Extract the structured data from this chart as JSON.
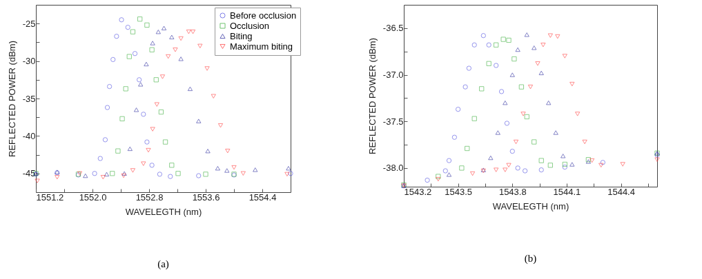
{
  "chart_data": [
    {
      "type": "scatter",
      "xlabel": "WAVELEGTH (nm)",
      "ylabel": "REFLECTED POWER (dBm)",
      "annotations": [
        "(a)"
      ],
      "legend": "top right",
      "grid": false,
      "xlim": [
        1551.2,
        1554.8
      ],
      "ylim": [
        -47.5,
        -22.5
      ],
      "xticks": [
        1551.2,
        {
          "value": 1551.6,
          "label": null
        },
        {
          "value": 1552.0,
          "label": "1552.0"
        },
        {
          "value": 1552.4,
          "label": null
        },
        1552.8,
        {
          "value": 1553.2,
          "label": null
        },
        1553.6,
        {
          "value": 1554.0,
          "label": null
        },
        1554.4
      ],
      "yticks": [
        {
          "value": -42.5,
          "label": null
        },
        -45,
        -40,
        {
          "value": -37.5,
          "label": null
        },
        -35,
        {
          "value": -32.5,
          "label": null
        },
        -30,
        {
          "value": -27.5,
          "label": null
        },
        -25
      ],
      "series": [
        {
          "name": "Before occlusion",
          "color": "#4444dd",
          "marker": "circle",
          "x": [
            1551.2,
            1551.5,
            1551.8,
            1552.03,
            1552.11,
            1552.18,
            1552.21,
            1552.24,
            1552.29,
            1552.34,
            1552.41,
            1552.5,
            1552.6,
            1552.66,
            1552.72,
            1552.77,
            1552.84,
            1552.95,
            1553.1,
            1553.5,
            1554.0,
            1554.8
          ],
          "values": [
            -45.1,
            -44.9,
            -45.2,
            -45.0,
            -43.0,
            -40.5,
            -36.2,
            -33.4,
            -29.8,
            -26.7,
            -24.5,
            -25.5,
            -29.0,
            -32.5,
            -37.1,
            -40.8,
            -43.9,
            -45.1,
            -45.4,
            -45.3,
            -45.2,
            -45.0
          ]
        },
        {
          "name": "Occlusion",
          "color": "#33aa33",
          "marker": "square",
          "x": [
            1551.2,
            1551.8,
            1552.28,
            1552.36,
            1552.42,
            1552.47,
            1552.52,
            1552.57,
            1552.67,
            1552.77,
            1552.84,
            1552.9,
            1552.97,
            1553.03,
            1553.12,
            1553.21,
            1553.6,
            1554.0
          ],
          "values": [
            -45.0,
            -45.1,
            -45.0,
            -42.0,
            -37.7,
            -33.7,
            -29.4,
            -26.1,
            -24.4,
            -25.2,
            -28.5,
            -32.5,
            -36.8,
            -40.8,
            -43.9,
            -45.0,
            -45.1,
            -45.1
          ]
        },
        {
          "name": "Biting",
          "color": "#222299",
          "marker": "triangle",
          "x": [
            1551.2,
            1551.5,
            1551.9,
            1552.2,
            1552.45,
            1552.53,
            1552.62,
            1552.68,
            1552.76,
            1552.85,
            1552.93,
            1553.01,
            1553.12,
            1553.25,
            1553.38,
            1553.5,
            1553.63,
            1553.77,
            1553.9,
            1554.3,
            1554.77
          ],
          "values": [
            -45.0,
            -44.8,
            -45.3,
            -45.1,
            -45.0,
            -41.7,
            -36.5,
            -33.1,
            -30.4,
            -27.6,
            -26.1,
            -25.6,
            -26.8,
            -29.7,
            -33.7,
            -38.0,
            -42.0,
            -44.3,
            -44.6,
            -44.5,
            -44.3
          ]
        },
        {
          "name": "Maximum biting",
          "color": "#ff3333",
          "marker": "triangle-down",
          "x": [
            1551.22,
            1551.5,
            1551.82,
            1552.15,
            1552.44,
            1552.57,
            1552.72,
            1552.79,
            1552.85,
            1552.91,
            1552.99,
            1553.07,
            1553.17,
            1553.25,
            1553.36,
            1553.42,
            1553.52,
            1553.62,
            1553.71,
            1553.81,
            1553.91,
            1554.0,
            1554.13,
            1554.75
          ],
          "values": [
            -46.0,
            -45.5,
            -45.0,
            -45.5,
            -45.3,
            -44.6,
            -43.7,
            -41.9,
            -39.1,
            -35.8,
            -32.1,
            -29.4,
            -28.5,
            -27.0,
            -26.1,
            -26.1,
            -28.0,
            -31.0,
            -34.7,
            -38.6,
            -42.0,
            -44.2,
            -45.0,
            -45.1
          ]
        }
      ]
    },
    {
      "type": "scatter",
      "xlabel": "WAVELEGTH (nm)",
      "ylabel": "REFLECTED POWER (dBm)",
      "annotations": [
        "(b)"
      ],
      "legend": "top right",
      "grid": false,
      "xlim": [
        1543.2,
        1544.6
      ],
      "ylim": [
        -38.2,
        -36.25
      ],
      "xticks": [
        1543.2,
        {
          "value": 1543.35,
          "label": null
        },
        1543.5,
        {
          "value": 1543.65,
          "label": null
        },
        1543.8,
        {
          "value": 1543.95,
          "label": null
        },
        1544.1,
        {
          "value": 1544.25,
          "label": null
        },
        1544.4,
        {
          "value": 1544.55,
          "label": null
        }
      ],
      "yticks": [
        {
          "value": -38,
          "label": "-38.0"
        },
        {
          "value": -37.75,
          "label": null
        },
        -37.5,
        {
          "value": -37.25,
          "label": null
        },
        {
          "value": -37,
          "label": "-37.0"
        },
        {
          "value": -36.75,
          "label": null
        },
        -36.5
      ],
      "series": [
        {
          "name": "Before occlusion",
          "color": "#4444dd",
          "marker": "circle",
          "x": [
            1543.2,
            1543.33,
            1543.43,
            1543.45,
            1543.48,
            1543.5,
            1543.54,
            1543.56,
            1543.59,
            1543.64,
            1543.67,
            1543.71,
            1543.74,
            1543.77,
            1543.8,
            1543.83,
            1543.87,
            1543.96,
            1544.09,
            1544.3,
            1544.6
          ],
          "values": [
            -38.19,
            -38.13,
            -38.03,
            -37.92,
            -37.67,
            -37.37,
            -37.13,
            -36.93,
            -36.68,
            -36.58,
            -36.68,
            -36.9,
            -37.18,
            -37.52,
            -37.82,
            -38.0,
            -38.03,
            -38.02,
            -37.99,
            -37.94,
            -37.86
          ]
        },
        {
          "name": "Occlusion",
          "color": "#33aa33",
          "marker": "square",
          "x": [
            1543.2,
            1543.39,
            1543.52,
            1543.55,
            1543.59,
            1543.63,
            1543.67,
            1543.71,
            1543.75,
            1543.78,
            1543.81,
            1543.85,
            1543.88,
            1543.92,
            1543.96,
            1544.01,
            1544.09,
            1544.22,
            1544.6
          ],
          "values": [
            -38.18,
            -38.09,
            -38.0,
            -37.79,
            -37.47,
            -37.15,
            -36.88,
            -36.68,
            -36.62,
            -36.63,
            -36.83,
            -37.13,
            -37.45,
            -37.72,
            -37.92,
            -37.97,
            -37.96,
            -37.91,
            -37.84
          ]
        },
        {
          "name": "Biting",
          "color": "#222299",
          "marker": "triangle",
          "x": [
            1543.2,
            1543.45,
            1543.64,
            1543.68,
            1543.72,
            1543.76,
            1543.8,
            1543.83,
            1543.88,
            1543.92,
            1543.96,
            1544.0,
            1544.04,
            1544.08,
            1544.13,
            1544.22,
            1544.6
          ],
          "values": [
            -38.19,
            -38.07,
            -38.02,
            -37.89,
            -37.62,
            -37.3,
            -37.0,
            -36.73,
            -36.57,
            -36.71,
            -36.98,
            -37.3,
            -37.62,
            -37.87,
            -37.96,
            -37.93,
            -37.84
          ]
        },
        {
          "name": "Maximum biting",
          "color": "#ff3333",
          "marker": "triangle-down",
          "x": [
            1543.2,
            1543.39,
            1543.58,
            1543.64,
            1543.71,
            1543.76,
            1543.78,
            1543.82,
            1543.86,
            1543.9,
            1543.94,
            1543.97,
            1544.01,
            1544.05,
            1544.09,
            1544.13,
            1544.16,
            1544.2,
            1544.24,
            1544.29,
            1544.41,
            1544.6
          ],
          "values": [
            -38.19,
            -38.12,
            -38.06,
            -38.03,
            -38.02,
            -38.02,
            -37.97,
            -37.72,
            -37.42,
            -37.13,
            -36.88,
            -36.68,
            -36.58,
            -36.59,
            -36.8,
            -37.1,
            -37.42,
            -37.72,
            -37.92,
            -37.97,
            -37.96,
            -37.91
          ]
        }
      ]
    }
  ]
}
